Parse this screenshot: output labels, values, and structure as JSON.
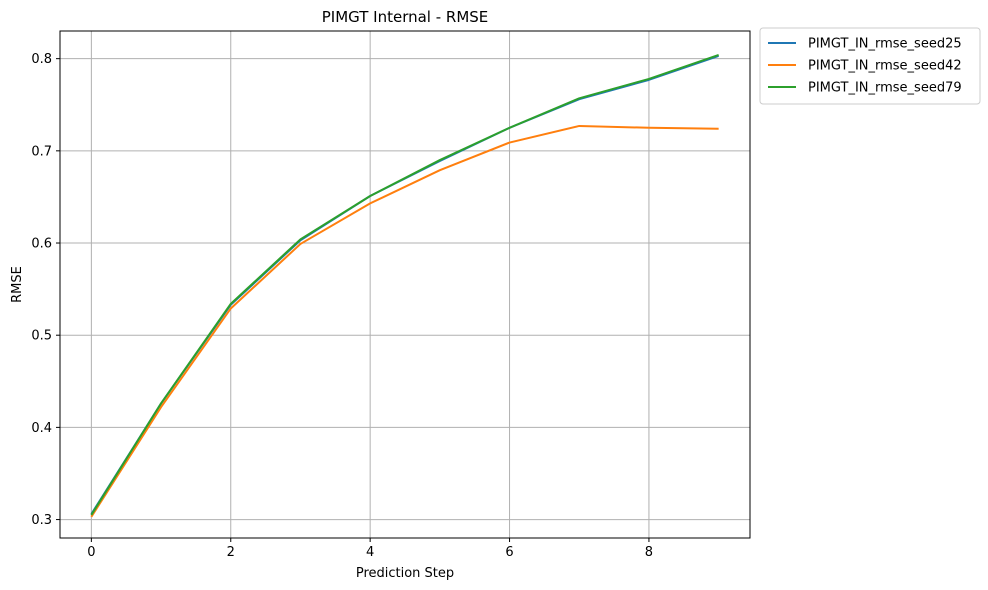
{
  "chart_data": {
    "type": "line",
    "title": "PIMGT Internal - RMSE",
    "xlabel": "Prediction Step",
    "ylabel": "RMSE",
    "xlim": [
      -0.45,
      9.45
    ],
    "ylim": [
      0.28,
      0.83
    ],
    "xticks": [
      0,
      2,
      4,
      6,
      8
    ],
    "yticks": [
      0.3,
      0.4,
      0.5,
      0.6,
      0.7,
      0.8
    ],
    "x": [
      0,
      1,
      2,
      3,
      4,
      5,
      6,
      7,
      8,
      9
    ],
    "grid": true,
    "legend_position": "outside-top-right",
    "series": [
      {
        "name": "PIMGT_IN_rmse_seed25",
        "color": "#1f77b4",
        "values": [
          0.306,
          0.426,
          0.533,
          0.603,
          0.651,
          0.689,
          0.725,
          0.756,
          0.777,
          0.803
        ]
      },
      {
        "name": "PIMGT_IN_rmse_seed42",
        "color": "#ff7f0e",
        "values": [
          0.303,
          0.422,
          0.529,
          0.599,
          0.643,
          0.679,
          0.709,
          0.727,
          0.725,
          0.724
        ]
      },
      {
        "name": "PIMGT_IN_rmse_seed79",
        "color": "#2ca02c",
        "values": [
          0.305,
          0.426,
          0.534,
          0.604,
          0.651,
          0.69,
          0.725,
          0.757,
          0.778,
          0.804
        ]
      }
    ]
  }
}
